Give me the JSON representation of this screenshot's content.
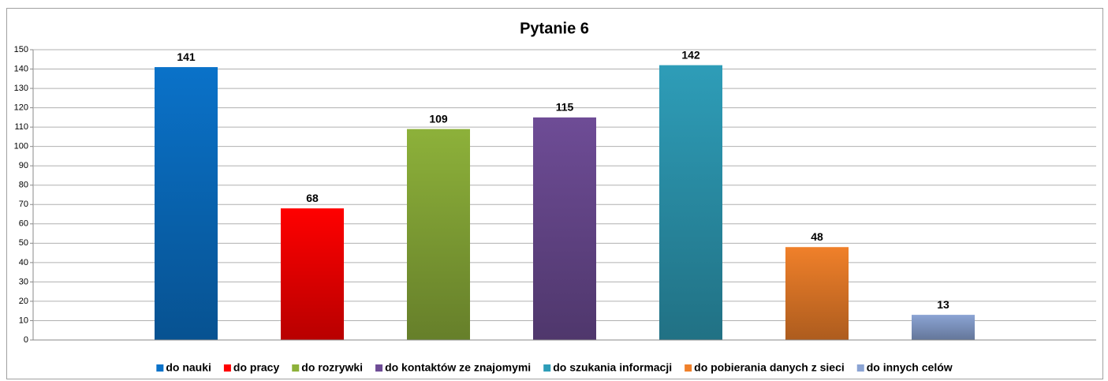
{
  "chart_data": {
    "type": "bar",
    "title": "Pytanie 6",
    "categories": [
      null
    ],
    "series": [
      {
        "name": "do nauki",
        "color": "#0a72c9",
        "values": [
          141
        ]
      },
      {
        "name": "do pracy",
        "color": "#ff0000",
        "values": [
          68
        ]
      },
      {
        "name": "do rozrywki",
        "color": "#8db13a",
        "values": [
          109
        ]
      },
      {
        "name": "do kontaktów ze znajomymi",
        "color": "#6e4c96",
        "values": [
          115
        ]
      },
      {
        "name": "do szukania informacji",
        "color": "#2e9db8",
        "values": [
          142
        ]
      },
      {
        "name": "do pobierania danych z sieci",
        "color": "#f0802a",
        "values": [
          48
        ]
      },
      {
        "name": "do innych celów",
        "color": "#8ba4d4",
        "values": [
          13
        ]
      }
    ],
    "ylim": [
      0,
      150
    ],
    "yticks": [
      0,
      10,
      20,
      30,
      40,
      50,
      60,
      70,
      80,
      90,
      100,
      110,
      120,
      130,
      140,
      150
    ],
    "grid": true,
    "legend": "bottom"
  }
}
